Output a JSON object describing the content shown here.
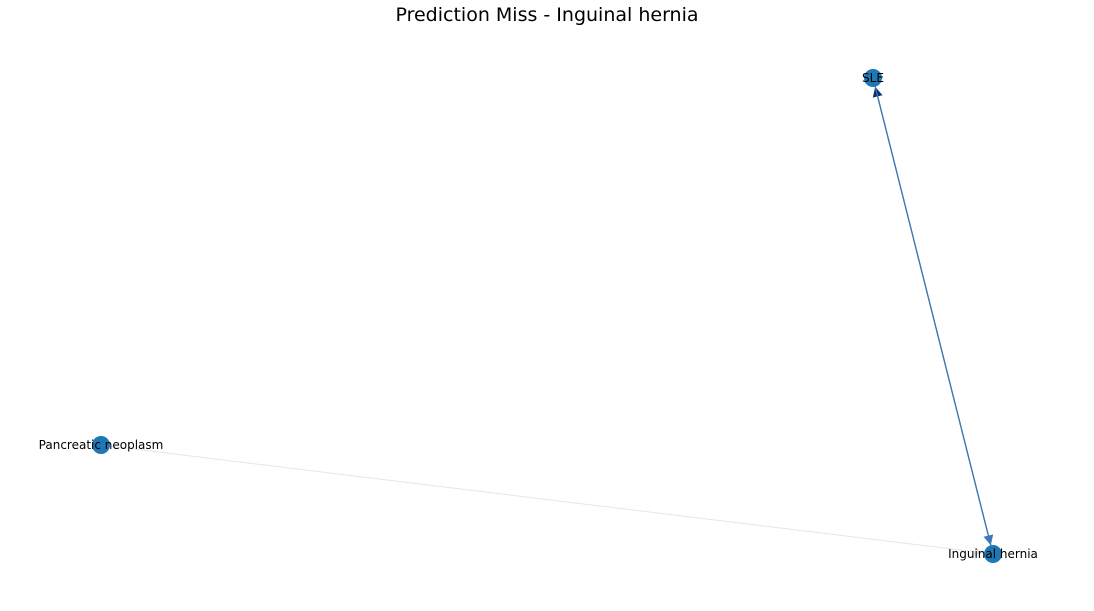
{
  "title": "Prediction Miss - Inguinal hernia",
  "colors": {
    "node": "#1f77b4",
    "edge_strong": "#08306b",
    "edge_mid": "#3d7bb8",
    "edge_faint": "#e6e6e6",
    "label": "#000000",
    "background": "#ffffff"
  },
  "nodes": [
    {
      "id": "sle",
      "label": "SLE"
    },
    {
      "id": "pancreatic",
      "label": "Pancreatic neoplasm"
    },
    {
      "id": "inguinal",
      "label": "Inguinal hernia"
    }
  ],
  "edges": [
    {
      "from": "inguinal",
      "to": "sle",
      "strength": "strong"
    },
    {
      "from": "sle",
      "to": "inguinal",
      "strength": "mid"
    },
    {
      "from": "pancreatic",
      "to": "inguinal",
      "strength": "faint"
    }
  ]
}
